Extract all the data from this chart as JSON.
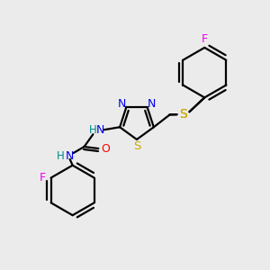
{
  "background_color": "#ebebeb",
  "atom_colors": {
    "C": "#000000",
    "N": "#0000ee",
    "S": "#ccaa00",
    "O": "#ff0000",
    "F": "#ee00ee",
    "H": "#008888"
  },
  "bond_color": "#000000",
  "bond_lw": 1.6,
  "figsize": [
    3.0,
    3.0
  ],
  "dpi": 100
}
